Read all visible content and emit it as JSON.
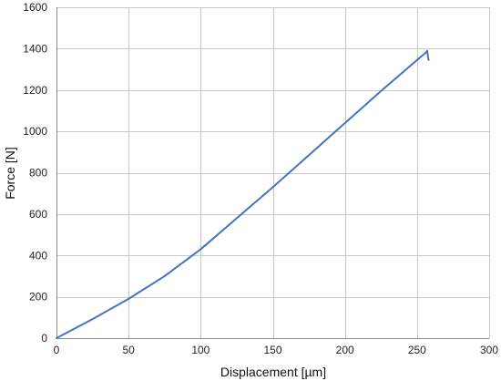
{
  "chart_data": {
    "type": "line",
    "title": "",
    "xlabel": "Displacement [µm]",
    "ylabel": "Force [N]",
    "xlim": [
      0,
      300
    ],
    "ylim": [
      0,
      1600
    ],
    "xticks": [
      0,
      50,
      100,
      150,
      200,
      250,
      300
    ],
    "yticks": [
      0,
      200,
      400,
      600,
      800,
      1000,
      1200,
      1400,
      1600
    ],
    "grid": true,
    "legend": "none",
    "series_color": "#4472c4",
    "series": [
      {
        "x": [
          0,
          25,
          50,
          75,
          100,
          125,
          150,
          175,
          200,
          225,
          250,
          256,
          257,
          258
        ],
        "y": [
          0,
          92,
          190,
          300,
          430,
          580,
          730,
          885,
          1040,
          1195,
          1345,
          1380,
          1390,
          1345
        ]
      }
    ]
  }
}
